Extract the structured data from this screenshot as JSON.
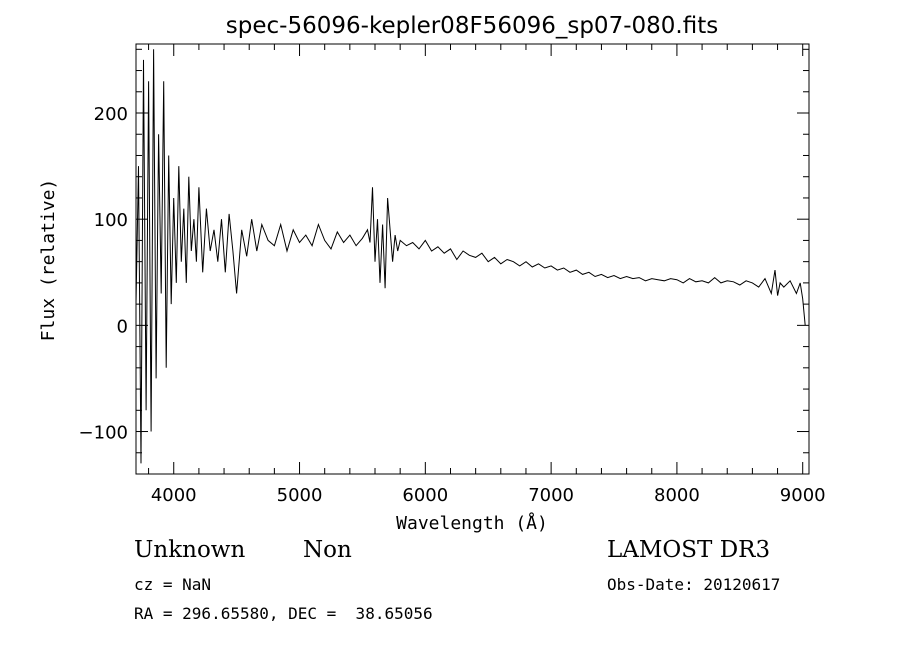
{
  "chart_data": {
    "type": "line",
    "title": "spec-56096-kepler08F56096_sp07-080.fits",
    "xlabel": "Wavelength (Å)",
    "ylabel": "Flux (relative)",
    "xlim": [
      3700,
      9050
    ],
    "ylim": [
      -140,
      265
    ],
    "x_ticks": [
      4000,
      5000,
      6000,
      7000,
      8000,
      9000
    ],
    "y_ticks": [
      -100,
      0,
      100,
      200
    ],
    "x_tick_labels": [
      "4000",
      "5000",
      "6000",
      "7000",
      "8000",
      "9000"
    ],
    "y_tick_labels": [
      "−100",
      "0",
      "100",
      "200"
    ],
    "grid": false,
    "series": [
      {
        "name": "spectrum",
        "color": "#000000",
        "x": [
          3700,
          3720,
          3740,
          3760,
          3780,
          3800,
          3820,
          3840,
          3860,
          3880,
          3900,
          3920,
          3940,
          3960,
          3980,
          4000,
          4020,
          4040,
          4060,
          4080,
          4100,
          4120,
          4140,
          4160,
          4180,
          4200,
          4230,
          4260,
          4290,
          4320,
          4350,
          4380,
          4410,
          4440,
          4470,
          4500,
          4540,
          4580,
          4620,
          4660,
          4700,
          4750,
          4800,
          4850,
          4900,
          4950,
          5000,
          5050,
          5100,
          5150,
          5200,
          5250,
          5300,
          5350,
          5400,
          5450,
          5500,
          5540,
          5560,
          5580,
          5600,
          5620,
          5640,
          5660,
          5680,
          5700,
          5720,
          5740,
          5760,
          5780,
          5800,
          5850,
          5900,
          5950,
          6000,
          6050,
          6100,
          6150,
          6200,
          6250,
          6300,
          6350,
          6400,
          6450,
          6500,
          6550,
          6600,
          6650,
          6700,
          6750,
          6800,
          6850,
          6900,
          6950,
          7000,
          7050,
          7100,
          7150,
          7200,
          7250,
          7300,
          7350,
          7400,
          7450,
          7500,
          7550,
          7600,
          7650,
          7700,
          7750,
          7800,
          7850,
          7900,
          7950,
          8000,
          8050,
          8100,
          8150,
          8200,
          8250,
          8300,
          8350,
          8400,
          8450,
          8500,
          8550,
          8600,
          8650,
          8700,
          8750,
          8780,
          8800,
          8820,
          8850,
          8900,
          8950,
          8980,
          9000,
          9020
        ],
        "y": [
          20,
          150,
          -130,
          250,
          -80,
          230,
          -100,
          260,
          -50,
          180,
          30,
          230,
          -40,
          160,
          20,
          120,
          40,
          150,
          60,
          110,
          40,
          140,
          70,
          100,
          60,
          130,
          50,
          110,
          70,
          90,
          60,
          100,
          50,
          105,
          70,
          30,
          90,
          65,
          100,
          70,
          95,
          80,
          75,
          95,
          70,
          90,
          78,
          85,
          75,
          95,
          80,
          72,
          88,
          78,
          85,
          75,
          82,
          90,
          78,
          130,
          60,
          100,
          40,
          95,
          35,
          120,
          90,
          60,
          85,
          70,
          80,
          75,
          78,
          72,
          80,
          70,
          74,
          68,
          72,
          62,
          70,
          66,
          64,
          68,
          60,
          64,
          58,
          62,
          60,
          56,
          60,
          55,
          58,
          54,
          56,
          52,
          54,
          50,
          52,
          48,
          50,
          46,
          48,
          45,
          47,
          44,
          46,
          44,
          45,
          42,
          44,
          43,
          42,
          44,
          43,
          40,
          44,
          41,
          42,
          40,
          45,
          40,
          42,
          41,
          38,
          42,
          40,
          36,
          44,
          30,
          52,
          28,
          40,
          36,
          42,
          30,
          40,
          25,
          0
        ]
      }
    ]
  },
  "info": {
    "object_class": "Unknown",
    "subclass": "Non",
    "cz_text": "cz = NaN",
    "coords_text": "RA = 296.65580, DEC =  38.65056",
    "survey": "LAMOST DR3",
    "obs_date": "Obs-Date: 20120617"
  }
}
